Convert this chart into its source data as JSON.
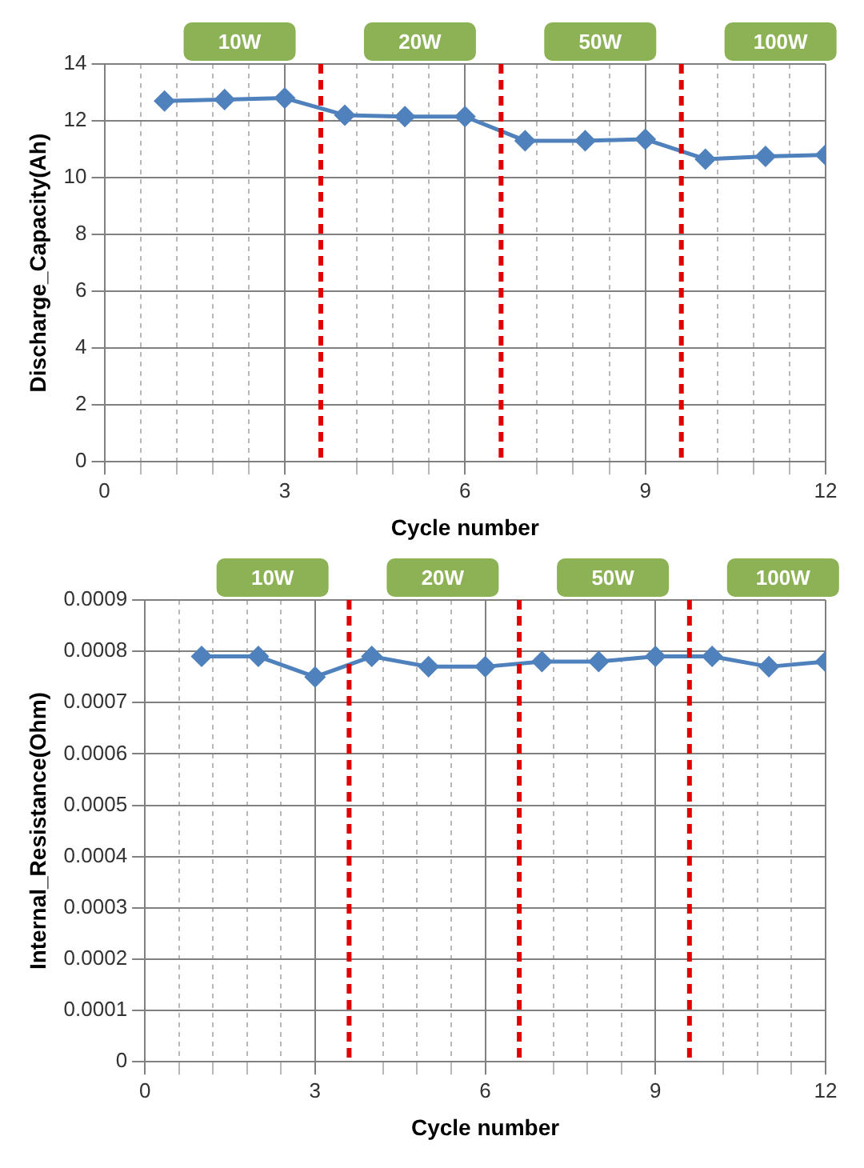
{
  "chart_data": [
    {
      "type": "line",
      "xlabel": "Cycle number",
      "ylabel": "Discharge_Capacity(Ah)",
      "annotations": [
        "10W",
        "20W",
        "50W",
        "100W"
      ],
      "series": [
        {
          "color": "#4f81bd",
          "x": [
            1,
            2,
            3,
            4,
            5,
            6,
            7,
            8,
            9,
            10,
            11,
            12
          ],
          "values": [
            12.7,
            12.75,
            12.8,
            12.2,
            12.15,
            12.15,
            11.3,
            11.3,
            11.35,
            10.65,
            10.75,
            10.8
          ]
        }
      ],
      "xlim": [
        0,
        12
      ],
      "xticks": [
        0,
        {
          "value": 0.6,
          "label": null
        },
        {
          "value": 1.2,
          "label": null
        },
        {
          "value": 1.8,
          "label": null
        },
        {
          "value": 2.4,
          "label": null
        },
        3,
        {
          "value": 4.2,
          "label": null
        },
        {
          "value": 4.8,
          "label": null
        },
        {
          "value": 5.4,
          "label": null
        },
        6,
        {
          "value": 7.2,
          "label": null
        },
        {
          "value": 7.8,
          "label": null
        },
        {
          "value": 8.4,
          "label": null
        },
        9,
        {
          "value": 10.2,
          "label": null
        },
        {
          "value": 10.8,
          "label": null
        },
        {
          "value": 11.4,
          "label": null
        },
        12
      ],
      "ylim": [
        0,
        14
      ],
      "yticks": [
        0,
        2,
        4,
        6,
        8,
        10,
        12,
        14
      ],
      "ref_lines": [
        {
          "axis": "x",
          "value": 3.6,
          "color": "#e00000",
          "line_style": "dashed"
        },
        {
          "axis": "x",
          "value": 6.6,
          "color": "#e00000",
          "line_style": "dashed"
        },
        {
          "axis": "x",
          "value": 9.6,
          "color": "#e00000",
          "line_style": "dashed"
        }
      ],
      "grid": true,
      "marker": "diamond",
      "line_style": "solid",
      "legend": false
    },
    {
      "type": "line",
      "xlabel": "Cycle number",
      "ylabel": "Internal_Resistance(Ohm)",
      "annotations": [
        "10W",
        "20W",
        "50W",
        "100W"
      ],
      "series": [
        {
          "color": "#4f81bd",
          "x": [
            1,
            2,
            3,
            4,
            5,
            6,
            7,
            8,
            9,
            10,
            11,
            12
          ],
          "values": [
            0.00079,
            0.00079,
            0.00075,
            0.00079,
            0.00077,
            0.00077,
            0.00078,
            0.00078,
            0.00079,
            0.00079,
            0.00077,
            0.00078
          ]
        }
      ],
      "xlim": [
        0,
        12
      ],
      "xticks": [
        0,
        {
          "value": 0.6,
          "label": null
        },
        {
          "value": 1.2,
          "label": null
        },
        {
          "value": 1.8,
          "label": null
        },
        {
          "value": 2.4,
          "label": null
        },
        3,
        {
          "value": 4.2,
          "label": null
        },
        {
          "value": 4.8,
          "label": null
        },
        {
          "value": 5.4,
          "label": null
        },
        6,
        {
          "value": 7.2,
          "label": null
        },
        {
          "value": 7.8,
          "label": null
        },
        {
          "value": 8.4,
          "label": null
        },
        9,
        {
          "value": 10.2,
          "label": null
        },
        {
          "value": 10.8,
          "label": null
        },
        {
          "value": 11.4,
          "label": null
        },
        12
      ],
      "ylim": [
        0,
        0.0009
      ],
      "yticks": [
        0,
        0.0001,
        0.0002,
        0.0003,
        0.0004,
        0.0005,
        0.0006,
        0.0007,
        0.0008,
        0.0009
      ],
      "ref_lines": [
        {
          "axis": "x",
          "value": 3.6,
          "color": "#e00000",
          "line_style": "dashed"
        },
        {
          "axis": "x",
          "value": 6.6,
          "color": "#e00000",
          "line_style": "dashed"
        },
        {
          "axis": "x",
          "value": 9.6,
          "color": "#e00000",
          "line_style": "dashed"
        }
      ],
      "grid": true,
      "marker": "diamond",
      "line_style": "solid",
      "legend": false
    }
  ]
}
